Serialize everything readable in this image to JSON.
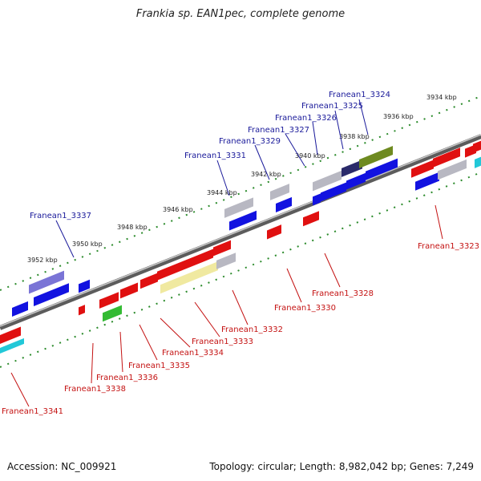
{
  "title": "Frankia sp. EAN1pec, complete genome",
  "accession": "Accession: NC_009921",
  "summary": "Topology: circular; Length: 8,982,042 bp; Genes: 7,249",
  "ticks": [
    "3934 kbp",
    "3936 kbp",
    "3938 kbp",
    "3940 kbp",
    "3942 kbp",
    "3944 kbp",
    "3946 kbp",
    "3948 kbp",
    "3950 kbp",
    "3952 kbp"
  ],
  "genes_top": [
    "Franean1_3324",
    "Franean1_3325",
    "Franean1_3326",
    "Franean1_3327",
    "Franean1_3329",
    "Franean1_3331",
    "Franean1_3337"
  ],
  "genes_bottom": [
    "Franean1_3323",
    "Franean1_3328",
    "Franean1_3330",
    "Franean1_3332",
    "Franean1_3333",
    "Franean1_3334",
    "Franean1_3335",
    "Franean1_3336",
    "Franean1_3338",
    "Franean1_3341"
  ],
  "colors": {
    "forward": "#1212e0",
    "reverse": "#e01010",
    "gray": "#b8b8c2",
    "yellow": "#f0e9a0",
    "green": "#33bb33",
    "olive": "#6e8a20",
    "purple": "#7a74d6",
    "cyan": "#22c8d8",
    "label_blue": "#1a1a9a",
    "label_red": "#c41212",
    "backbone": "#8c8c8c",
    "dots": "#2a8a2a"
  }
}
